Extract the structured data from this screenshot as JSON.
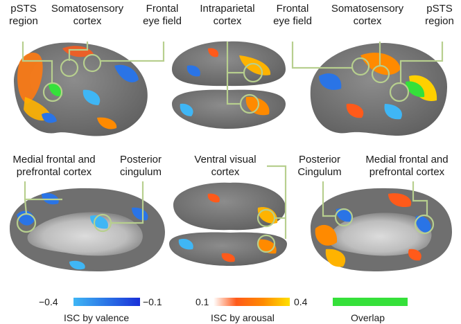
{
  "top_row": {
    "left_labels": {
      "psts": [
        "pSTS",
        "region"
      ],
      "somato": [
        "Somatosensory",
        "cortex"
      ],
      "fef": [
        "Frontal",
        "eye field"
      ]
    },
    "center_label": [
      "Intraparietal",
      "cortex"
    ],
    "right_labels": {
      "fef": [
        "Frontal",
        "eye field"
      ],
      "somato": [
        "Somatosensory",
        "cortex"
      ],
      "psts": [
        "pSTS",
        "region"
      ]
    }
  },
  "bottom_row": {
    "left_labels": {
      "medial": [
        "Medial frontal and",
        "prefrontal cortex"
      ],
      "posterior": [
        "Posterior",
        "cingulum"
      ]
    },
    "center_label": [
      "Ventral visual",
      "cortex"
    ],
    "right_labels": {
      "posterior": [
        "Posterior",
        "Cingulum"
      ],
      "medial": [
        "Medial frontal and",
        "prefrontal cortex"
      ]
    }
  },
  "legend": {
    "valence": {
      "min": "−0.4",
      "max": "−0.1",
      "title": "ISC by valence",
      "colors": [
        "#3fb6f5",
        "#2a74e6",
        "#1930d8"
      ]
    },
    "arousal": {
      "min": "0.1",
      "max": "0.4",
      "title": "ISC by arousal",
      "colors": [
        "#ffffff",
        "#ff5a1a",
        "#ff8a00",
        "#ffe000"
      ]
    },
    "overlap": {
      "title": "Overlap",
      "color": "#35e03a"
    }
  },
  "colors": {
    "brain": "#7a7a7a",
    "brain_dark": "#5a5a5a",
    "brain_medial": "#c9c9c9",
    "callout": "#b7cf8e"
  }
}
